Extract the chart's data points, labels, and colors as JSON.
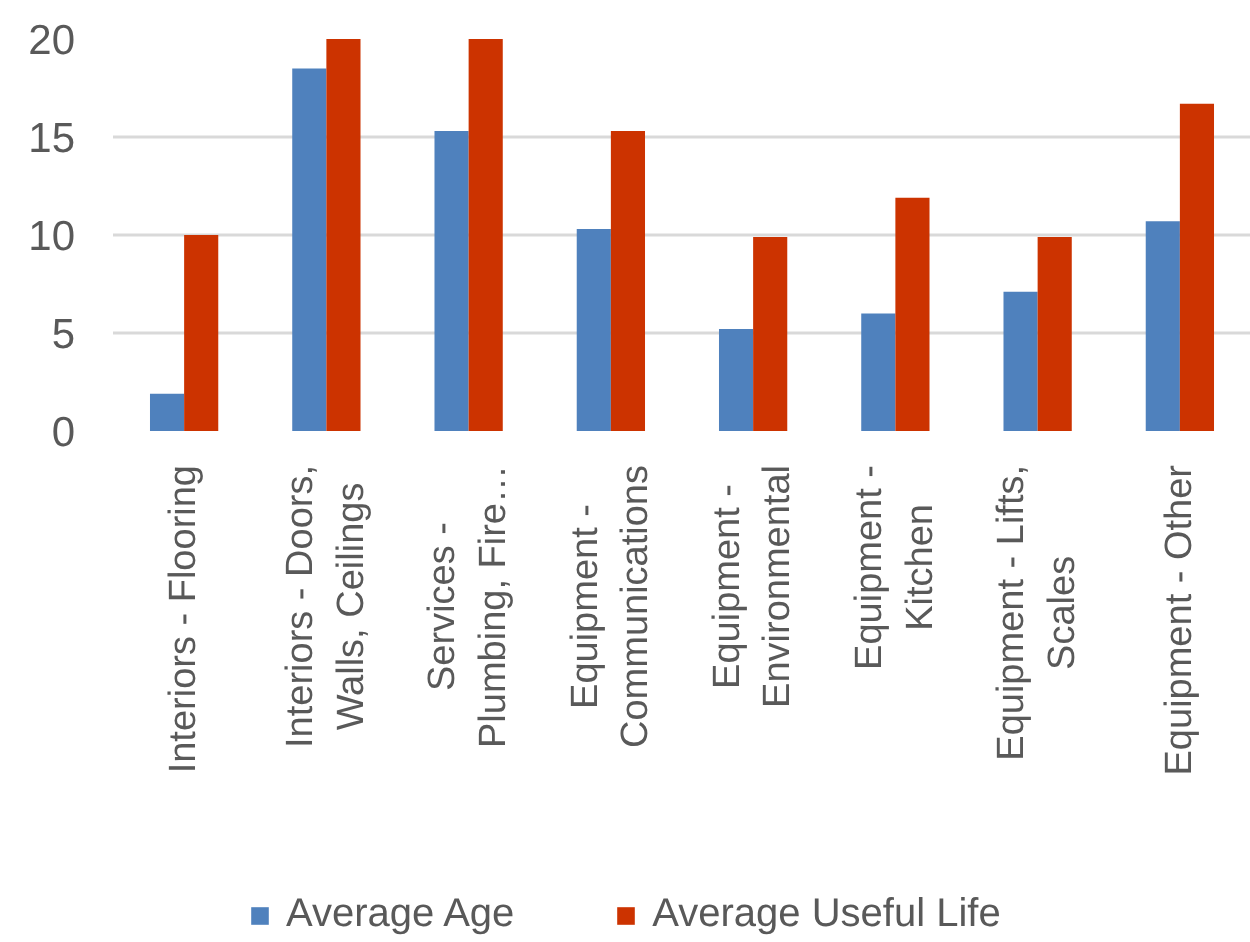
{
  "chart_data": {
    "type": "bar",
    "categories": [
      "Interiors - Flooring",
      "Interiors - Doors, Walls, Ceilings",
      "Services - Plumbing, Fire…",
      "Equipment - Communications",
      "Equipment - Environmental",
      "Equipment - Kitchen",
      "Equipment - Lifts, Scales",
      "Equipment - Other"
    ],
    "series": [
      {
        "name": "Average Age",
        "color": "#4f81bd",
        "values": [
          1.9,
          18.5,
          15.3,
          10.3,
          5.2,
          6.0,
          7.1,
          10.7
        ]
      },
      {
        "name": "Average Useful Life",
        "color": "#cc3300",
        "values": [
          10.0,
          20.0,
          20.0,
          15.3,
          9.9,
          11.9,
          9.9,
          16.7
        ]
      }
    ],
    "ylim": [
      0,
      20
    ],
    "yticks": [
      0,
      5,
      10,
      15,
      20
    ],
    "grid": "y",
    "legend": "bottom"
  }
}
